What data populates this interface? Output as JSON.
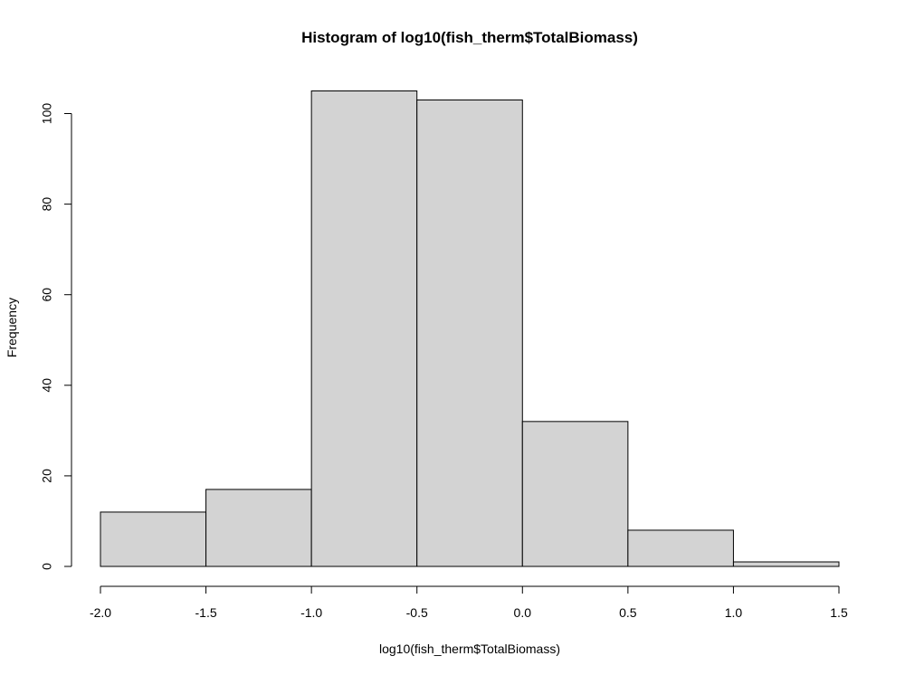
{
  "chart_data": {
    "type": "bar",
    "subtype": "histogram",
    "title": "Histogram of log10(fish_therm$TotalBiomass)",
    "xlabel": "log10(fish_therm$TotalBiomass)",
    "ylabel": "Frequency",
    "bins": [
      {
        "x0": -2.0,
        "x1": -1.5,
        "count": 12
      },
      {
        "x0": -1.5,
        "x1": -1.0,
        "count": 17
      },
      {
        "x0": -1.0,
        "x1": -0.5,
        "count": 105
      },
      {
        "x0": -0.5,
        "x1": 0.0,
        "count": 103
      },
      {
        "x0": 0.0,
        "x1": 0.5,
        "count": 32
      },
      {
        "x0": 0.5,
        "x1": 1.0,
        "count": 8
      },
      {
        "x0": 1.0,
        "x1": 1.5,
        "count": 1
      }
    ],
    "xlim": [
      -2.0,
      1.5
    ],
    "ylim": [
      0,
      105
    ],
    "x_ticks": [
      -2.0,
      -1.5,
      -1.0,
      -0.5,
      0.0,
      0.5,
      1.0,
      1.5
    ],
    "x_tick_labels": [
      "-2.0",
      "-1.5",
      "-1.0",
      "-0.5",
      "0.0",
      "0.5",
      "1.0",
      "1.5"
    ],
    "y_ticks": [
      0,
      20,
      40,
      60,
      80,
      100
    ],
    "y_tick_labels": [
      "0",
      "20",
      "40",
      "60",
      "80",
      "100"
    ],
    "grid": false,
    "bar_fill": "#d3d3d3",
    "bar_stroke": "#000000"
  }
}
